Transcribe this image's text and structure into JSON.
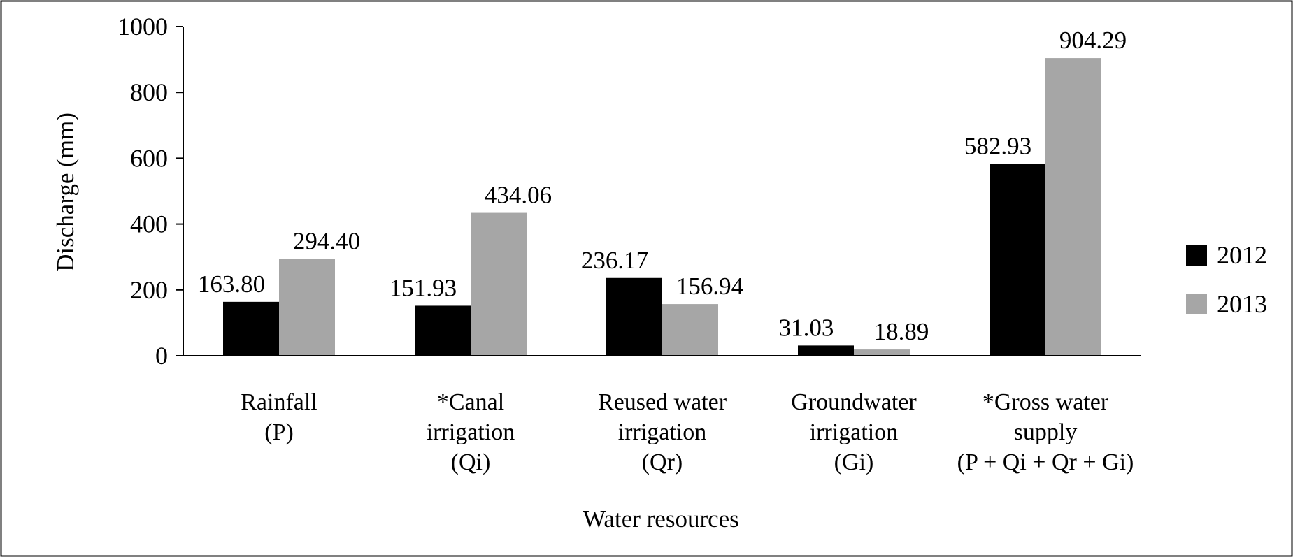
{
  "chart_data": {
    "type": "bar",
    "title": "",
    "xlabel": "Water resources",
    "ylabel": "Discharge (mm)",
    "ylim": [
      0,
      1000
    ],
    "yticks": [
      "0",
      "200",
      "400",
      "600",
      "800",
      "1000"
    ],
    "grid": false,
    "legend_position": "right",
    "categories": [
      [
        "Rainfall",
        "(P)"
      ],
      [
        "*Canal",
        "irrigation",
        "(Qi)"
      ],
      [
        "Reused water",
        "irrigation",
        "(Qr)"
      ],
      [
        "Groundwater",
        "irrigation",
        "(Gi)"
      ],
      [
        "*Gross water",
        "supply",
        "(P + Qi + Qr + Gi)"
      ]
    ],
    "series": [
      {
        "name": "2012",
        "color": "#000000",
        "values": [
          163.8,
          151.93,
          236.17,
          31.03,
          582.93
        ],
        "labels": [
          "163.80",
          "151.93",
          "236.17",
          "31.03",
          "582.93"
        ]
      },
      {
        "name": "2013",
        "color": "#a6a6a6",
        "values": [
          294.4,
          434.06,
          156.94,
          18.89,
          904.29
        ],
        "labels": [
          "294.40",
          "434.06",
          "156.94",
          "18.89",
          "904.29"
        ]
      }
    ]
  }
}
